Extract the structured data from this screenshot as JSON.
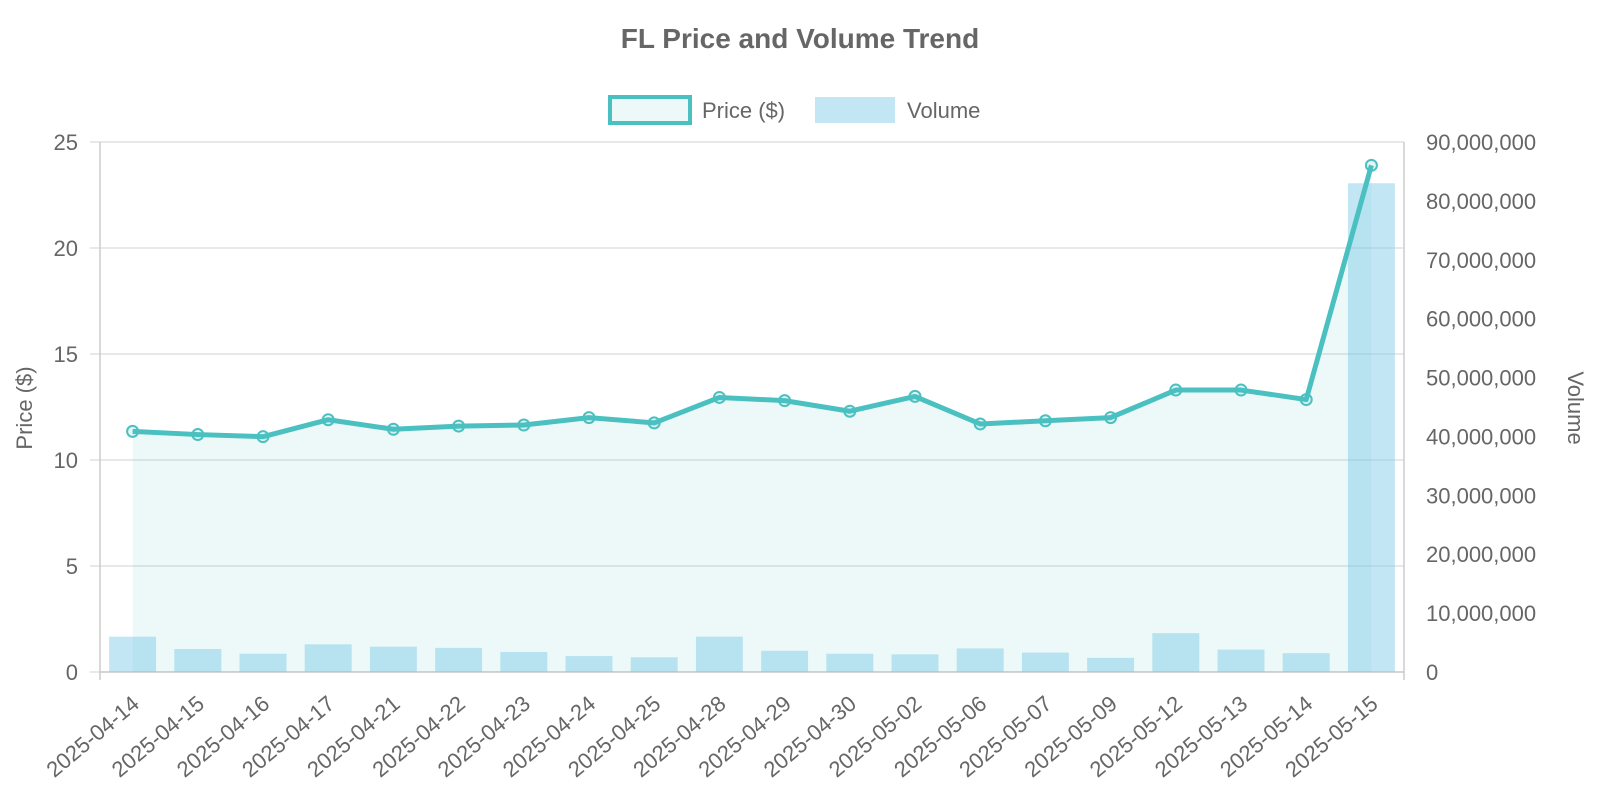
{
  "chart_data": {
    "type": "bar+line",
    "title": "FL Price and Volume Trend",
    "legend": {
      "placement": "top-center",
      "items": [
        {
          "label": "Price ($)",
          "kind": "line"
        },
        {
          "label": "Volume",
          "kind": "bar"
        }
      ]
    },
    "categories": [
      "2025-04-14",
      "2025-04-15",
      "2025-04-16",
      "2025-04-17",
      "2025-04-21",
      "2025-04-22",
      "2025-04-23",
      "2025-04-24",
      "2025-04-25",
      "2025-04-28",
      "2025-04-29",
      "2025-04-30",
      "2025-05-02",
      "2025-05-06",
      "2025-05-07",
      "2025-05-09",
      "2025-05-12",
      "2025-05-13",
      "2025-05-14",
      "2025-05-15"
    ],
    "series": [
      {
        "name": "Price ($)",
        "type": "line",
        "axis": "left",
        "color": "#4bc0c0",
        "fill": "rgba(75,192,192,0.1)",
        "values": [
          11.35,
          11.2,
          11.1,
          11.9,
          11.45,
          11.6,
          11.65,
          12.0,
          11.75,
          12.95,
          12.8,
          12.3,
          13.0,
          11.7,
          11.85,
          12.0,
          13.3,
          13.3,
          12.85,
          23.9
        ]
      },
      {
        "name": "Volume",
        "type": "bar",
        "axis": "right",
        "color": "rgba(135,206,235,0.5)",
        "values": [
          6000000,
          3900000,
          3100000,
          4700000,
          4300000,
          4100000,
          3400000,
          2700000,
          2500000,
          6000000,
          3600000,
          3100000,
          3000000,
          4000000,
          3300000,
          2400000,
          6600000,
          3800000,
          3200000,
          83000000
        ]
      }
    ],
    "y_left": {
      "label": "Price ($)",
      "min": 0,
      "max": 25,
      "ticks": [
        "0",
        "5",
        "10",
        "15",
        "20",
        "25"
      ]
    },
    "y_right": {
      "label": "Volume",
      "min": 0,
      "max": 90000000,
      "ticks": [
        "0",
        "10,000,000",
        "20,000,000",
        "30,000,000",
        "40,000,000",
        "50,000,000",
        "60,000,000",
        "70,000,000",
        "80,000,000",
        "90,000,000"
      ]
    },
    "grid": true
  }
}
